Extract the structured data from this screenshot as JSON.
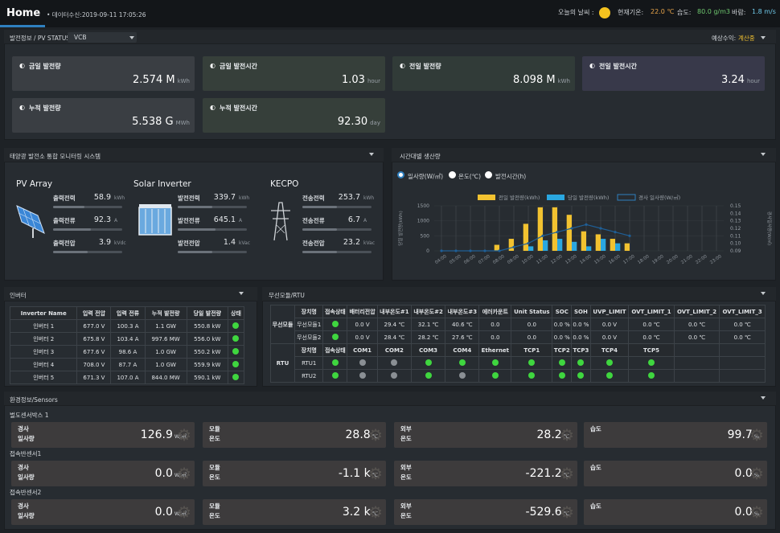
{
  "header": {
    "home": "Home",
    "data_time": "• 데이터수신:2019-09-11 17:05:26",
    "weather_label": "오늘의 날씨 :",
    "temp_label": "현재기온:",
    "temp": "22.0 ℃",
    "humid_label": "습도:",
    "humid": "80.0 g/m3",
    "wind_label": "바람:",
    "wind": "1.8 m/s"
  },
  "status_bar": {
    "title": "발전정보 / PV STATUS",
    "select": "VCB",
    "expected_label": "예상수익:",
    "expected_value": "계산중"
  },
  "pv_cards": [
    {
      "label": "금일 발전량",
      "value": "2.574 M",
      "unit": "kWh"
    },
    {
      "label": "금일 발전시간",
      "value": "1.03",
      "unit": "hour"
    },
    {
      "label": "전일 발전량",
      "value": "8.098 M",
      "unit": "kWh"
    },
    {
      "label": "전일 발전시간",
      "value": "3.24",
      "unit": "hour"
    },
    {
      "label": "누적 발전량",
      "value": "5.538 G",
      "unit": "MWh"
    },
    {
      "label": "누적 발전시간",
      "value": "92.30",
      "unit": "day"
    }
  ],
  "monitor": {
    "title": "태양광 발전소 통합 모니터링 시스템",
    "pv": {
      "title": "PV Array",
      "rows": [
        {
          "label": "출력전력",
          "value": "58.9",
          "unit": "kWh",
          "fill": 0.45
        },
        {
          "label": "출력전류",
          "value": "92.3",
          "unit": "A",
          "fill": 0.55
        },
        {
          "label": "출력전압",
          "value": "3.9",
          "unit": "kVdc",
          "fill": 0.5
        }
      ]
    },
    "inv": {
      "title": "Solar Inverter",
      "rows": [
        {
          "label": "발전전력",
          "value": "339.7",
          "unit": "kWh",
          "fill": 0.5
        },
        {
          "label": "발전전류",
          "value": "645.1",
          "unit": "A",
          "fill": 0.55
        },
        {
          "label": "발전전압",
          "value": "1.4",
          "unit": "kVac",
          "fill": 0.5
        }
      ]
    },
    "kecpo": {
      "title": "KECPO",
      "rows": [
        {
          "label": "전송전력",
          "value": "253.7",
          "unit": "kWh",
          "fill": 0.5
        },
        {
          "label": "전송전류",
          "value": "6.7",
          "unit": "A",
          "fill": 0.5
        },
        {
          "label": "전송전압",
          "value": "23.2",
          "unit": "kVac",
          "fill": 0.5
        }
      ]
    }
  },
  "hourly": {
    "title": "시간대별 생산량",
    "radios": [
      "일사량(W/㎡)",
      "온도(℃)",
      "발전시간(h)"
    ]
  },
  "chart_data": {
    "type": "bar",
    "categories": [
      "04:00",
      "05:00",
      "06:00",
      "07:00",
      "08:00",
      "09:00",
      "10:00",
      "11:00",
      "12:00",
      "13:00",
      "14:00",
      "15:00",
      "16:00",
      "17:00",
      "18:00",
      "19:00",
      "20:00",
      "21:00",
      "22:00",
      "23:00"
    ],
    "series": [
      {
        "name": "전일 발전량(kWh)",
        "color": "#f2c230",
        "values": [
          0,
          0,
          0,
          0,
          200,
          400,
          900,
          1450,
          1450,
          1200,
          650,
          550,
          400,
          250,
          0,
          0,
          0,
          0,
          0,
          0
        ]
      },
      {
        "name": "당일 발전량(kWh)",
        "color": "#2aa7e0",
        "values": [
          0,
          0,
          0,
          0,
          0,
          0,
          150,
          350,
          400,
          300,
          150,
          400,
          250,
          0,
          0,
          0,
          0,
          0,
          0,
          0
        ]
      },
      {
        "name": "경사 일사량(W/㎡)",
        "color": "#1f5f97",
        "values": [
          0.09,
          0.09,
          0.09,
          0.09,
          0.09,
          0.095,
          0.1,
          0.11,
          0.115,
          0.12,
          0.125,
          0.12,
          0.115,
          0.11,
          null,
          null,
          null,
          null,
          null,
          null
        ]
      }
    ],
    "ylim": [
      0,
      1500
    ],
    "y2lim": [
      0.09,
      0.15
    ],
    "yticks": [
      "1500",
      "1000",
      "500",
      "0"
    ],
    "y2ticks": [
      "0.15",
      "0.14",
      "0.13",
      "0.12",
      "0.11",
      "0.10",
      "0.09"
    ],
    "ylabel": "당일 발전량(kWh)",
    "y2label": "경사일사량(W/㎡)"
  },
  "inverter": {
    "title": "인버터",
    "headers": [
      "Inverter Name",
      "입력 전압",
      "입력 전류",
      "누적 발전량",
      "당일 발전량",
      "상태"
    ],
    "rows": [
      [
        "인버터 1",
        "677.0 V",
        "100.3 A",
        "1.1 GW",
        "550.8 kW"
      ],
      [
        "인버터 2",
        "675.8 V",
        "103.4 A",
        "997.6 MW",
        "556.0 kW"
      ],
      [
        "인버터 3",
        "677.6 V",
        "98.6 A",
        "1.0 GW",
        "550.2 kW"
      ],
      [
        "인버터 4",
        "708.0 V",
        "87.7 A",
        "1.0 GW",
        "559.9 kW"
      ],
      [
        "인버터 5",
        "671.3 V",
        "107.0 A",
        "844.0 MW",
        "590.1 kW"
      ]
    ]
  },
  "rtu": {
    "title": "무선모듈/RTU",
    "mod_group": "무선모듈",
    "rtu_group": "RTU",
    "mod_headers": [
      "장치명",
      "접속상태",
      "배터리전압",
      "내부온도#1",
      "내부온도#2",
      "내부온도#3",
      "에러카운트",
      "Unit Status",
      "SOC",
      "SOH",
      "UVP_LIMIT",
      "OVT_LIMIT_1",
      "OVT_LIMIT_2",
      "OVT_LIMIT_3"
    ],
    "mod_rows": [
      [
        "무선모듈1",
        "0.0 V",
        "29.4 ℃",
        "32.1 ℃",
        "40.6 ℃",
        "0.0",
        "0.0",
        "0.0 %",
        "0.0 %",
        "0.0 V",
        "0.0 ℃",
        "0.0 ℃",
        "0.0 ℃"
      ],
      [
        "무선모듈2",
        "0.0 V",
        "28.4 ℃",
        "28.2 ℃",
        "27.6 ℃",
        "0.0",
        "0.0",
        "0.0 %",
        "0.0 %",
        "0.0 V",
        "0.0 ℃",
        "0.0 ℃",
        "0.0 ℃"
      ]
    ],
    "rtu_headers": [
      "장치명",
      "접속상태",
      "COM1",
      "COM2",
      "COM3",
      "COM4",
      "Ethernet",
      "TCP1",
      "TCP2",
      "TCP3",
      "TCP4",
      "TCP5"
    ],
    "rtu_rows": [
      {
        "name": "RTU1",
        "dots": [
          "g",
          "gray",
          "gray",
          "g",
          "g",
          "g",
          "g",
          "g",
          "g",
          "g",
          "g"
        ]
      },
      {
        "name": "RTU2",
        "dots": [
          "g",
          "gray",
          "gray",
          "g",
          "gray",
          "g",
          "g",
          "g",
          "g",
          "g",
          "g"
        ]
      }
    ]
  },
  "sensors": {
    "title": "환경정보/Sensors",
    "groups": [
      {
        "name": "벌도센서박스 1",
        "cards": [
          {
            "l1": "경사",
            "l2": "일사량",
            "value": "126.9",
            "unit": "W/㎡"
          },
          {
            "l1": "모듈",
            "l2": "온도",
            "value": "28.8",
            "unit": "℃"
          },
          {
            "l1": "외부",
            "l2": "온도",
            "value": "28.2",
            "unit": "℃"
          },
          {
            "l1": "습도",
            "l2": "",
            "value": "99.7",
            "unit": "%"
          }
        ]
      },
      {
        "name": "접속반센서1",
        "cards": [
          {
            "l1": "경사",
            "l2": "일사량",
            "value": "0.0",
            "unit": "W/㎡"
          },
          {
            "l1": "모듈",
            "l2": "온도",
            "value": "-1.1 k",
            "unit": "℃"
          },
          {
            "l1": "외부",
            "l2": "온도",
            "value": "-221.2",
            "unit": "℃"
          },
          {
            "l1": "습도",
            "l2": "",
            "value": "0.0",
            "unit": "%"
          }
        ]
      },
      {
        "name": "접속반센서2",
        "cards": [
          {
            "l1": "경사",
            "l2": "일사량",
            "value": "0.0",
            "unit": "W/㎡"
          },
          {
            "l1": "모듈",
            "l2": "온도",
            "value": "3.2 k",
            "unit": "℃"
          },
          {
            "l1": "외부",
            "l2": "온도",
            "value": "-529.6",
            "unit": "℃"
          },
          {
            "l1": "습도",
            "l2": "",
            "value": "0.0",
            "unit": "%"
          }
        ]
      }
    ]
  }
}
